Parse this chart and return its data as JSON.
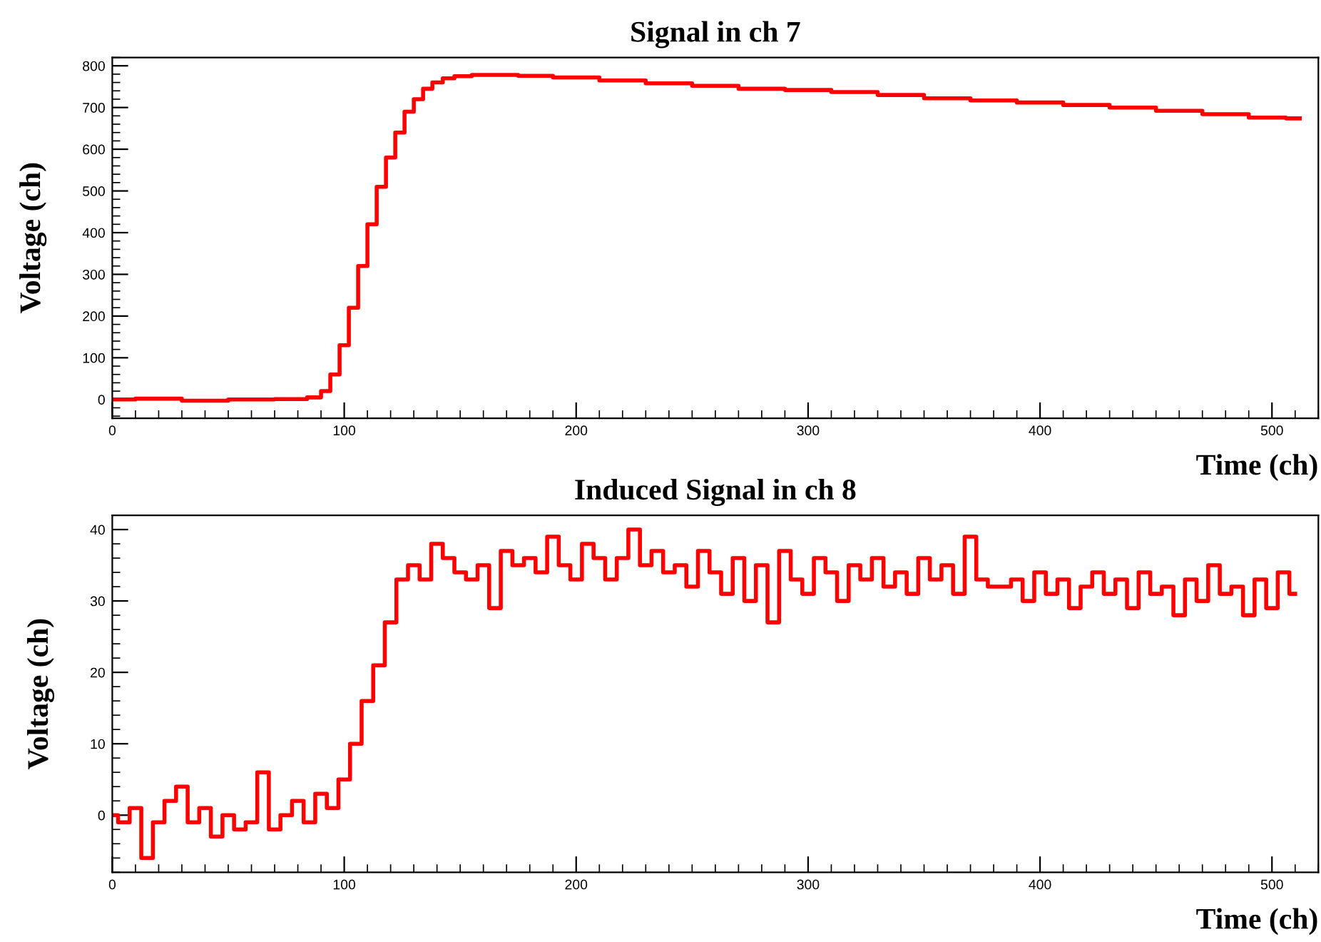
{
  "chart_data": [
    {
      "type": "step",
      "title": "Signal in ch 7",
      "xlabel": "Time (ch)",
      "ylabel": "Voltage (ch)",
      "xlim": [
        0,
        520
      ],
      "xticks": [
        0,
        100,
        200,
        300,
        400,
        500
      ],
      "ylim": [
        -45,
        820
      ],
      "yticks": [
        0,
        100,
        200,
        300,
        400,
        500,
        600,
        700,
        800
      ],
      "grid": false,
      "legend": false,
      "series": [
        {
          "color": "#ff0000",
          "x": [
            0,
            20,
            40,
            60,
            80,
            88,
            92,
            96,
            100,
            104,
            108,
            112,
            116,
            120,
            124,
            128,
            132,
            136,
            140,
            145,
            150,
            160,
            170,
            180,
            200,
            220,
            240,
            260,
            280,
            300,
            320,
            340,
            360,
            380,
            400,
            420,
            440,
            460,
            480,
            500,
            512
          ],
          "values": [
            0,
            2,
            -3,
            0,
            1,
            5,
            20,
            60,
            130,
            220,
            320,
            420,
            510,
            580,
            640,
            690,
            720,
            745,
            760,
            770,
            775,
            778,
            778,
            776,
            772,
            765,
            758,
            752,
            745,
            742,
            737,
            730,
            722,
            717,
            712,
            706,
            700,
            692,
            684,
            676,
            674
          ]
        }
      ]
    },
    {
      "type": "step",
      "title": "Induced Signal in ch 8",
      "xlabel": "Time (ch)",
      "ylabel": "Voltage (ch)",
      "xlim": [
        0,
        520
      ],
      "xticks": [
        0,
        100,
        200,
        300,
        400,
        500
      ],
      "ylim": [
        -8,
        42
      ],
      "yticks": [
        0,
        10,
        20,
        30,
        40
      ],
      "grid": false,
      "legend": false,
      "series": [
        {
          "color": "#ff0000",
          "x": [
            0,
            5,
            10,
            15,
            20,
            25,
            30,
            35,
            40,
            45,
            50,
            55,
            60,
            65,
            70,
            75,
            80,
            85,
            90,
            95,
            100,
            105,
            110,
            115,
            120,
            125,
            130,
            135,
            140,
            145,
            150,
            155,
            160,
            165,
            170,
            175,
            180,
            185,
            190,
            195,
            200,
            205,
            210,
            215,
            220,
            225,
            230,
            235,
            240,
            245,
            250,
            255,
            260,
            265,
            270,
            275,
            280,
            285,
            290,
            295,
            300,
            305,
            310,
            315,
            320,
            325,
            330,
            335,
            340,
            345,
            350,
            355,
            360,
            365,
            370,
            375,
            380,
            385,
            390,
            395,
            400,
            405,
            410,
            415,
            420,
            425,
            430,
            435,
            440,
            445,
            450,
            455,
            460,
            465,
            470,
            475,
            480,
            485,
            490,
            495,
            500,
            505,
            510
          ],
          "values": [
            0,
            -1,
            1,
            -6,
            -1,
            2,
            4,
            -1,
            1,
            -3,
            0,
            -2,
            -1,
            6,
            -2,
            0,
            2,
            -1,
            3,
            1,
            5,
            10,
            16,
            21,
            27,
            33,
            35,
            33,
            38,
            36,
            34,
            33,
            35,
            29,
            37,
            35,
            36,
            34,
            39,
            35,
            33,
            38,
            36,
            33,
            36,
            40,
            35,
            37,
            34,
            35,
            32,
            37,
            34,
            31,
            36,
            30,
            35,
            27,
            37,
            33,
            31,
            36,
            34,
            30,
            35,
            33,
            36,
            32,
            34,
            31,
            36,
            33,
            35,
            31,
            39,
            33,
            32,
            32,
            33,
            30,
            34,
            31,
            33,
            29,
            32,
            34,
            31,
            33,
            29,
            34,
            31,
            32,
            28,
            33,
            30,
            35,
            31,
            32,
            28,
            33,
            29,
            34,
            31
          ]
        }
      ]
    }
  ]
}
